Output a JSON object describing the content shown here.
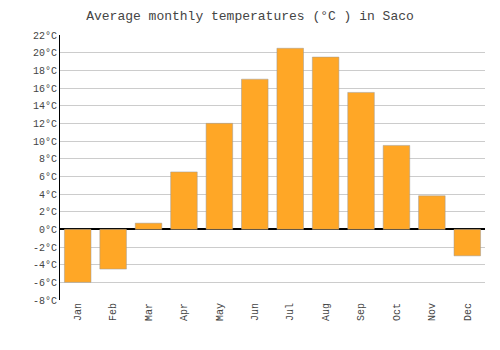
{
  "chart_data": {
    "type": "bar",
    "title": "Average monthly temperatures (°C ) in Saco",
    "categories": [
      "Jan",
      "Feb",
      "Mar",
      "Apr",
      "May",
      "Jun",
      "Jul",
      "Aug",
      "Sep",
      "Oct",
      "Nov",
      "Dec"
    ],
    "values": [
      -6.0,
      -4.5,
      0.7,
      6.5,
      12.0,
      17.0,
      20.5,
      19.5,
      15.5,
      9.5,
      3.8,
      -3.0
    ],
    "color": "#FFA726",
    "ylim": [
      -8,
      22
    ],
    "yticks": [
      {
        "value": -8,
        "label": "-8°C"
      },
      {
        "value": -6,
        "label": "-6°C"
      },
      {
        "value": -4,
        "label": "-4°C"
      },
      {
        "value": -2,
        "label": "-2°C"
      },
      {
        "value": 0,
        "label": "0°C"
      },
      {
        "value": 2,
        "label": "2°C"
      },
      {
        "value": 4,
        "label": "4°C"
      },
      {
        "value": 6,
        "label": "6°C"
      },
      {
        "value": 8,
        "label": "8°C"
      },
      {
        "value": 10,
        "label": "10°C"
      },
      {
        "value": 12,
        "label": "12°C"
      },
      {
        "value": 14,
        "label": "14°C"
      },
      {
        "value": 16,
        "label": "16°C"
      },
      {
        "value": 18,
        "label": "18°C"
      },
      {
        "value": 20,
        "label": "20°C"
      },
      {
        "value": 22,
        "label": "22°C"
      }
    ],
    "grid": true
  }
}
